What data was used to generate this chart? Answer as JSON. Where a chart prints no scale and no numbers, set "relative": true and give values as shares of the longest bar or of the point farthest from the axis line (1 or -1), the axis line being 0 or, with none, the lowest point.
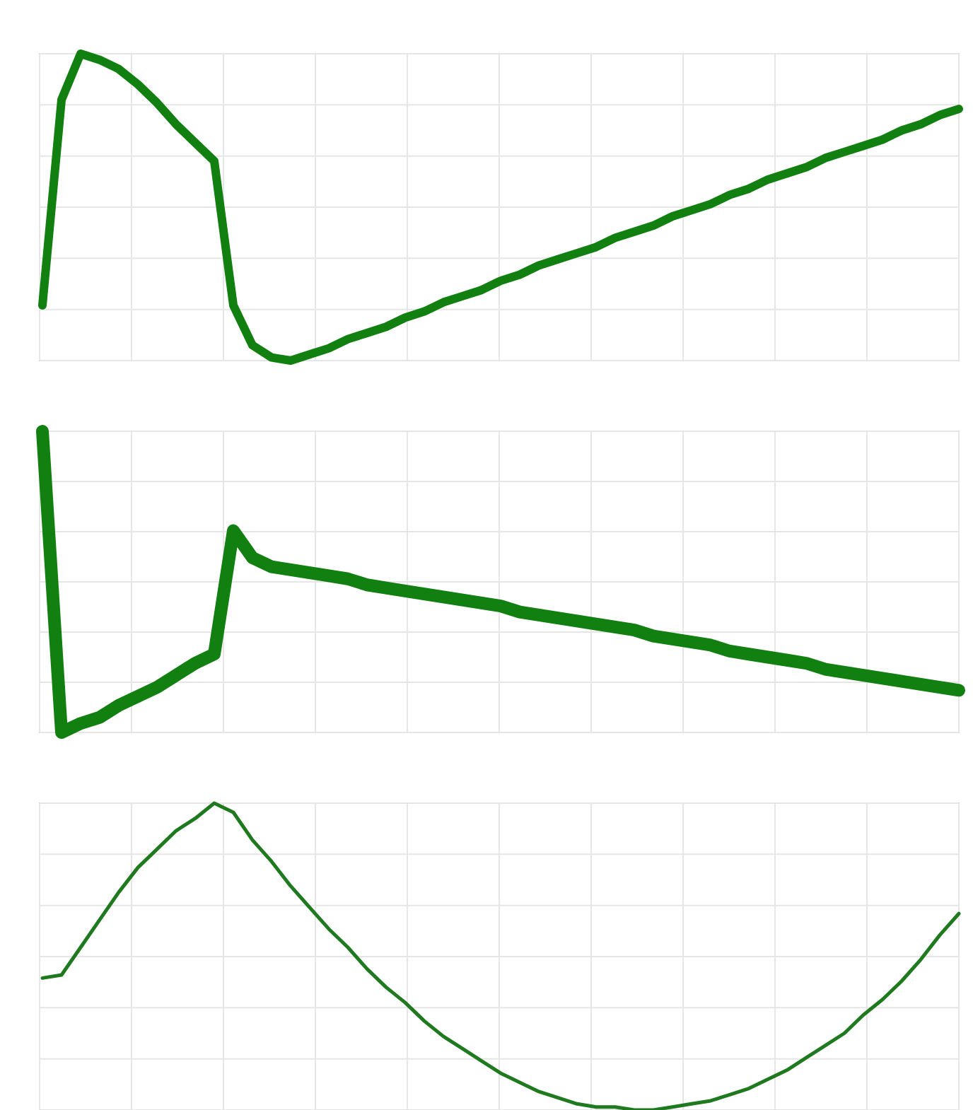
{
  "chart_data": [
    {
      "type": "line",
      "relative": true,
      "grid": true,
      "categories": [
        null,
        null,
        null,
        null,
        null,
        null,
        null,
        null,
        null,
        null,
        null,
        null,
        null,
        null,
        null,
        null,
        null,
        null,
        null,
        null,
        null,
        null,
        null,
        null,
        null,
        null,
        null,
        null,
        null,
        null,
        null,
        null,
        null,
        null,
        null,
        null,
        null,
        null,
        null,
        null,
        null,
        null,
        null,
        null,
        null,
        null,
        null,
        null,
        null
      ],
      "series": [
        {
          "color": "#118011",
          "values": [
            0.18,
            0.85,
            1,
            0.98,
            0.95,
            0.9,
            0.84,
            0.77,
            0.71,
            0.65,
            0.18,
            0.05,
            0.01,
            0,
            0.02,
            0.04,
            0.07,
            0.09,
            0.11,
            0.14,
            0.16,
            0.19,
            0.21,
            0.23,
            0.26,
            0.28,
            0.31,
            0.33,
            0.35,
            0.37,
            0.4,
            0.42,
            0.44,
            0.47,
            0.49,
            0.51,
            0.54,
            0.56,
            0.59,
            0.61,
            0.63,
            0.66,
            0.68,
            0.7,
            0.72,
            0.75,
            0.77,
            0.8,
            0.82
          ]
        }
      ]
    },
    {
      "type": "line",
      "relative": true,
      "grid": true,
      "categories": [
        null,
        null,
        null,
        null,
        null,
        null,
        null,
        null,
        null,
        null,
        null,
        null,
        null,
        null,
        null,
        null,
        null,
        null,
        null,
        null,
        null,
        null,
        null,
        null,
        null,
        null,
        null,
        null,
        null,
        null,
        null,
        null,
        null,
        null,
        null,
        null,
        null,
        null,
        null,
        null,
        null,
        null,
        null,
        null,
        null,
        null,
        null,
        null,
        null
      ],
      "series": [
        {
          "color": "#118011",
          "values": [
            1,
            0,
            0.03,
            0.05,
            0.09,
            0.12,
            0.15,
            0.19,
            0.23,
            0.26,
            0.67,
            0.58,
            0.55,
            0.54,
            0.53,
            0.52,
            0.51,
            0.49,
            0.48,
            0.47,
            0.46,
            0.45,
            0.44,
            0.43,
            0.42,
            0.4,
            0.39,
            0.38,
            0.37,
            0.36,
            0.35,
            0.34,
            0.32,
            0.31,
            0.3,
            0.29,
            0.27,
            0.26,
            0.25,
            0.24,
            0.23,
            0.21,
            0.2,
            0.19,
            0.18,
            0.17,
            0.16,
            0.15,
            0.14
          ]
        }
      ]
    },
    {
      "type": "line",
      "relative": true,
      "grid": true,
      "categories": [
        null,
        null,
        null,
        null,
        null,
        null,
        null,
        null,
        null,
        null,
        null,
        null,
        null,
        null,
        null,
        null,
        null,
        null,
        null,
        null,
        null,
        null,
        null,
        null,
        null,
        null,
        null,
        null,
        null,
        null,
        null,
        null,
        null,
        null,
        null,
        null,
        null,
        null,
        null,
        null,
        null,
        null,
        null,
        null,
        null,
        null,
        null,
        null,
        null
      ],
      "series": [
        {
          "color": "#1f7a1f",
          "values": [
            0.43,
            0.44,
            0.53,
            0.62,
            0.71,
            0.79,
            0.85,
            0.91,
            0.95,
            1,
            0.97,
            0.88,
            0.81,
            0.73,
            0.66,
            0.59,
            0.53,
            0.46,
            0.4,
            0.35,
            0.29,
            0.24,
            0.2,
            0.16,
            0.12,
            0.09,
            0.06,
            0.04,
            0.02,
            0.01,
            0.01,
            0,
            0,
            0.01,
            0.02,
            0.03,
            0.05,
            0.07,
            0.1,
            0.13,
            0.17,
            0.21,
            0.25,
            0.31,
            0.36,
            0.42,
            0.49,
            0.57,
            0.64
          ]
        }
      ]
    }
  ]
}
